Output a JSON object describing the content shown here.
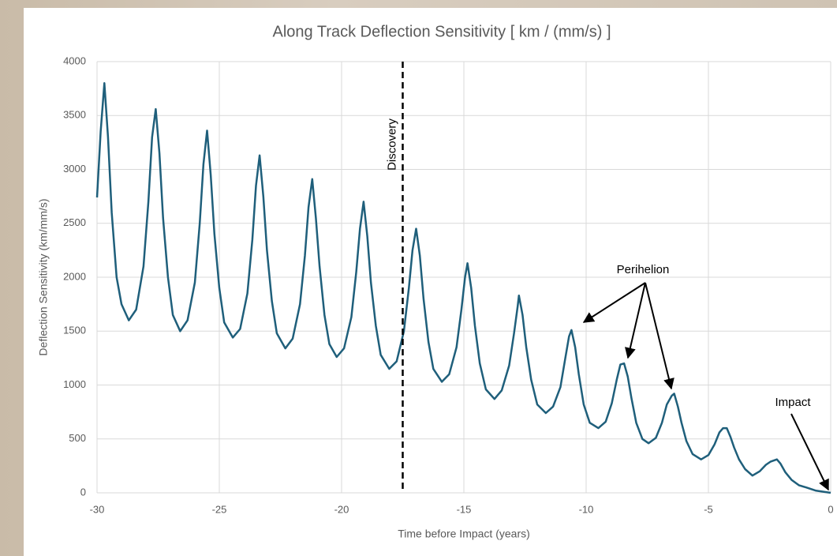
{
  "chart_data": {
    "type": "line",
    "title": "Along Track Deflection Sensitivity [ km / (mm/s) ]",
    "x_label": "Time before Impact (years)",
    "y_label": "Deflection Sensitivity (km/mm/s)",
    "color": "#1f5f7b",
    "grid": true,
    "xlim": [
      -30,
      0
    ],
    "xticks": [
      -30,
      -25,
      -20,
      -15,
      -10,
      -5,
      0
    ],
    "ylim": [
      0,
      4000
    ],
    "yticks": [
      0,
      500,
      1000,
      1500,
      2000,
      2500,
      3000,
      3500,
      4000
    ],
    "discovery_x": -17.5,
    "annotations": {
      "discovery": "Discovery",
      "perihelion": "Perihelion",
      "impact": "Impact"
    },
    "x": [
      -30,
      -29.85,
      -29.7,
      -29.55,
      -29.4,
      -29.2,
      -29.0,
      -28.7,
      -28.4,
      -28.1,
      -27.9,
      -27.75,
      -27.6,
      -27.45,
      -27.3,
      -27.1,
      -26.9,
      -26.6,
      -26.3,
      -26.0,
      -25.8,
      -25.65,
      -25.5,
      -25.35,
      -25.2,
      -25.0,
      -24.8,
      -24.45,
      -24.15,
      -23.85,
      -23.65,
      -23.5,
      -23.35,
      -23.2,
      -23.05,
      -22.85,
      -22.65,
      -22.3,
      -22.0,
      -21.7,
      -21.5,
      -21.35,
      -21.2,
      -21.05,
      -20.9,
      -20.7,
      -20.5,
      -20.2,
      -19.9,
      -19.6,
      -19.4,
      -19.25,
      -19.1,
      -18.95,
      -18.8,
      -18.6,
      -18.4,
      -18.05,
      -17.75,
      -17.45,
      -17.25,
      -17.1,
      -16.95,
      -16.8,
      -16.65,
      -16.45,
      -16.25,
      -15.9,
      -15.6,
      -15.3,
      -15.1,
      -14.95,
      -14.85,
      -14.7,
      -14.55,
      -14.35,
      -14.1,
      -13.75,
      -13.45,
      -13.15,
      -12.95,
      -12.8,
      -12.75,
      -12.6,
      -12.45,
      -12.25,
      -12.0,
      -11.65,
      -11.35,
      -11.05,
      -10.85,
      -10.7,
      -10.6,
      -10.45,
      -10.3,
      -10.1,
      -9.85,
      -9.5,
      -9.2,
      -8.95,
      -8.75,
      -8.6,
      -8.45,
      -8.3,
      -8.15,
      -7.95,
      -7.7,
      -7.45,
      -7.15,
      -6.9,
      -6.7,
      -6.5,
      -6.4,
      -6.25,
      -6.1,
      -5.9,
      -5.65,
      -5.3,
      -5.0,
      -4.75,
      -4.55,
      -4.4,
      -4.25,
      -4.1,
      -3.95,
      -3.75,
      -3.5,
      -3.2,
      -2.9,
      -2.65,
      -2.45,
      -2.2,
      -2.05,
      -1.85,
      -1.6,
      -1.3,
      -1.0,
      -0.6,
      -0.3,
      0
    ],
    "values": [
      2740,
      3350,
      3800,
      3300,
      2600,
      2000,
      1750,
      1600,
      1700,
      2100,
      2700,
      3300,
      3560,
      3150,
      2550,
      2000,
      1650,
      1500,
      1600,
      1950,
      2500,
      3050,
      3360,
      2950,
      2400,
      1900,
      1580,
      1440,
      1520,
      1850,
      2350,
      2850,
      3130,
      2750,
      2250,
      1780,
      1480,
      1340,
      1430,
      1750,
      2200,
      2650,
      2910,
      2550,
      2100,
      1650,
      1380,
      1260,
      1340,
      1630,
      2050,
      2450,
      2700,
      2380,
      1950,
      1550,
      1280,
      1150,
      1220,
      1500,
      1900,
      2250,
      2450,
      2200,
      1800,
      1400,
      1150,
      1030,
      1100,
      1350,
      1700,
      2000,
      2130,
      1900,
      1550,
      1200,
      960,
      870,
      950,
      1180,
      1480,
      1730,
      1830,
      1650,
      1350,
      1050,
      820,
      740,
      800,
      980,
      1250,
      1450,
      1510,
      1350,
      1100,
      820,
      650,
      600,
      660,
      830,
      1050,
      1190,
      1200,
      1080,
      880,
      650,
      500,
      460,
      510,
      650,
      820,
      900,
      920,
      800,
      650,
      480,
      360,
      310,
      350,
      450,
      560,
      600,
      600,
      520,
      420,
      310,
      220,
      160,
      200,
      260,
      290,
      310,
      270,
      190,
      120,
      70,
      50,
      20,
      10,
      0
    ]
  }
}
